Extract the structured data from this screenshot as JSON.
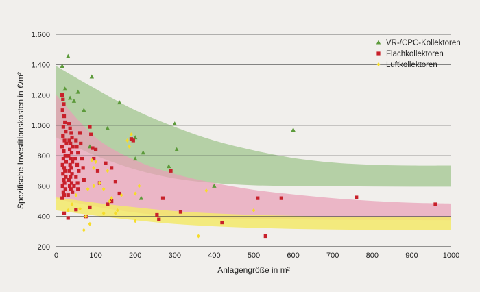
{
  "chart_data": {
    "type": "scatter",
    "xlabel": "Anlagengröße in m²",
    "ylabel": "Spezifische Investitionskosten in €/m²",
    "xlim": [
      0,
      1000
    ],
    "ylim": [
      200,
      1600
    ],
    "x_ticks": [
      "0",
      "100",
      "200",
      "300",
      "400",
      "500",
      "600",
      "700",
      "800",
      "900",
      "1000"
    ],
    "y_ticks": [
      "200",
      "400",
      "600",
      "800",
      "1.000",
      "1.200",
      "1.400",
      "1.600"
    ],
    "grid": "horizontal",
    "legend_position": "top-right",
    "colors": {
      "vr_cpc": "#5c9a3a",
      "flach": "#c8202a",
      "luft": "#f6dc2a",
      "band_green": "#9ec48a",
      "band_pink": "#e9a0b7",
      "band_orange": "#eda36c",
      "band_yellow": "#f3e96a",
      "grid": "#444444"
    },
    "bands": [
      {
        "id": "vr_cpc",
        "upper": [
          [
            0,
            1390
          ],
          [
            100,
            1240
          ],
          [
            200,
            1100
          ],
          [
            300,
            990
          ],
          [
            400,
            900
          ],
          [
            500,
            835
          ],
          [
            600,
            785
          ],
          [
            700,
            755
          ],
          [
            800,
            740
          ],
          [
            900,
            735
          ],
          [
            1000,
            735
          ]
        ],
        "lower": [
          [
            0,
            920
          ],
          [
            100,
            800
          ],
          [
            200,
            710
          ],
          [
            300,
            650
          ],
          [
            400,
            620
          ],
          [
            500,
            605
          ],
          [
            600,
            600
          ],
          [
            700,
            598
          ],
          [
            800,
            597
          ],
          [
            900,
            596
          ],
          [
            1000,
            596
          ]
        ]
      },
      {
        "id": "flach",
        "upper": [
          [
            0,
            1200
          ],
          [
            100,
            920
          ],
          [
            200,
            770
          ],
          [
            300,
            680
          ],
          [
            400,
            620
          ],
          [
            500,
            575
          ],
          [
            600,
            545
          ],
          [
            700,
            520
          ],
          [
            800,
            502
          ],
          [
            900,
            490
          ],
          [
            1000,
            485
          ]
        ],
        "lower": [
          [
            0,
            515
          ],
          [
            100,
            465
          ],
          [
            200,
            425
          ],
          [
            300,
            400
          ],
          [
            400,
            388
          ],
          [
            500,
            383
          ],
          [
            600,
            380
          ],
          [
            700,
            378
          ],
          [
            800,
            377
          ],
          [
            900,
            376
          ],
          [
            1000,
            375
          ]
        ]
      },
      {
        "id": "luft",
        "upper": [
          [
            0,
            525
          ],
          [
            100,
            490
          ],
          [
            200,
            460
          ],
          [
            300,
            435
          ],
          [
            400,
            420
          ],
          [
            500,
            410
          ],
          [
            600,
            404
          ],
          [
            700,
            400
          ],
          [
            800,
            398
          ],
          [
            900,
            396
          ],
          [
            1000,
            395
          ]
        ],
        "lower": [
          [
            0,
            440
          ],
          [
            100,
            405
          ],
          [
            200,
            375
          ],
          [
            300,
            350
          ],
          [
            400,
            335
          ],
          [
            500,
            325
          ],
          [
            600,
            318
          ],
          [
            700,
            314
          ],
          [
            800,
            312
          ],
          [
            900,
            311
          ],
          [
            1000,
            310
          ]
        ]
      }
    ],
    "series": [
      {
        "id": "vr_cpc",
        "name": "VR-/CPC-Kollektoren",
        "marker": "triangle",
        "points": [
          [
            15,
            1390
          ],
          [
            22,
            1240
          ],
          [
            30,
            1455
          ],
          [
            35,
            1180
          ],
          [
            45,
            1160
          ],
          [
            55,
            1220
          ],
          [
            70,
            1100
          ],
          [
            90,
            1320
          ],
          [
            130,
            980
          ],
          [
            160,
            1150
          ],
          [
            200,
            920
          ],
          [
            200,
            780
          ],
          [
            220,
            820
          ],
          [
            215,
            520
          ],
          [
            285,
            730
          ],
          [
            300,
            1010
          ],
          [
            305,
            840
          ],
          [
            400,
            600
          ],
          [
            600,
            970
          ],
          [
            85,
            860
          ]
        ]
      },
      {
        "id": "flach",
        "name": "Flachkollektoren",
        "marker": "square",
        "points": [
          [
            15,
            1200
          ],
          [
            17,
            1170
          ],
          [
            19,
            1140
          ],
          [
            16,
            1100
          ],
          [
            20,
            1060
          ],
          [
            22,
            1020
          ],
          [
            18,
            990
          ],
          [
            24,
            960
          ],
          [
            17,
            930
          ],
          [
            21,
            900
          ],
          [
            26,
            880
          ],
          [
            15,
            860
          ],
          [
            19,
            830
          ],
          [
            23,
            800
          ],
          [
            18,
            780
          ],
          [
            25,
            760
          ],
          [
            16,
            740
          ],
          [
            20,
            720
          ],
          [
            22,
            700
          ],
          [
            17,
            680
          ],
          [
            24,
            660
          ],
          [
            19,
            640
          ],
          [
            21,
            620
          ],
          [
            16,
            600
          ],
          [
            23,
            580
          ],
          [
            18,
            560
          ],
          [
            20,
            540
          ],
          [
            15,
            520
          ],
          [
            32,
            1010
          ],
          [
            35,
            980
          ],
          [
            38,
            950
          ],
          [
            40,
            920
          ],
          [
            33,
            900
          ],
          [
            36,
            880
          ],
          [
            42,
            860
          ],
          [
            34,
            840
          ],
          [
            39,
            820
          ],
          [
            31,
            800
          ],
          [
            37,
            780
          ],
          [
            41,
            760
          ],
          [
            35,
            740
          ],
          [
            38,
            720
          ],
          [
            33,
            700
          ],
          [
            40,
            680
          ],
          [
            36,
            660
          ],
          [
            32,
            640
          ],
          [
            39,
            620
          ],
          [
            34,
            600
          ],
          [
            37,
            580
          ],
          [
            41,
            560
          ],
          [
            30,
            540
          ],
          [
            50,
            900
          ],
          [
            52,
            860
          ],
          [
            55,
            820
          ],
          [
            48,
            780
          ],
          [
            53,
            740
          ],
          [
            57,
            700
          ],
          [
            50,
            660
          ],
          [
            54,
            620
          ],
          [
            60,
            950
          ],
          [
            62,
            880
          ],
          [
            65,
            780
          ],
          [
            68,
            720
          ],
          [
            70,
            640
          ],
          [
            45,
            600
          ],
          [
            55,
            580
          ],
          [
            85,
            990
          ],
          [
            88,
            940
          ],
          [
            92,
            850
          ],
          [
            95,
            780
          ],
          [
            100,
            840
          ],
          [
            105,
            700
          ],
          [
            110,
            620
          ],
          [
            85,
            460
          ],
          [
            125,
            750
          ],
          [
            140,
            720
          ],
          [
            150,
            630
          ],
          [
            160,
            550
          ],
          [
            190,
            910
          ],
          [
            195,
            900
          ],
          [
            270,
            520
          ],
          [
            260,
            380
          ],
          [
            255,
            410
          ],
          [
            290,
            700
          ],
          [
            315,
            430
          ],
          [
            420,
            360
          ],
          [
            510,
            520
          ],
          [
            530,
            270
          ],
          [
            570,
            520
          ],
          [
            760,
            525
          ],
          [
            960,
            480
          ],
          [
            30,
            390
          ],
          [
            20,
            420
          ],
          [
            50,
            445
          ],
          [
            75,
            400
          ],
          [
            130,
            480
          ],
          [
            140,
            500
          ]
        ]
      },
      {
        "id": "luft",
        "name": "Luftkollektoren",
        "marker": "diamond",
        "points": [
          [
            30,
            440
          ],
          [
            40,
            480
          ],
          [
            50,
            540
          ],
          [
            60,
            450
          ],
          [
            70,
            310
          ],
          [
            75,
            400
          ],
          [
            80,
            580
          ],
          [
            85,
            350
          ],
          [
            90,
            770
          ],
          [
            95,
            720
          ],
          [
            100,
            760
          ],
          [
            110,
            620
          ],
          [
            120,
            580
          ],
          [
            130,
            700
          ],
          [
            135,
            500
          ],
          [
            140,
            520
          ],
          [
            150,
            420
          ],
          [
            155,
            440
          ],
          [
            165,
            540
          ],
          [
            180,
            900
          ],
          [
            185,
            860
          ],
          [
            190,
            940
          ],
          [
            200,
            550
          ],
          [
            200,
            370
          ],
          [
            210,
            600
          ],
          [
            360,
            270
          ],
          [
            380,
            570
          ],
          [
            500,
            440
          ],
          [
            120,
            420
          ],
          [
            95,
            600
          ]
        ]
      }
    ]
  }
}
